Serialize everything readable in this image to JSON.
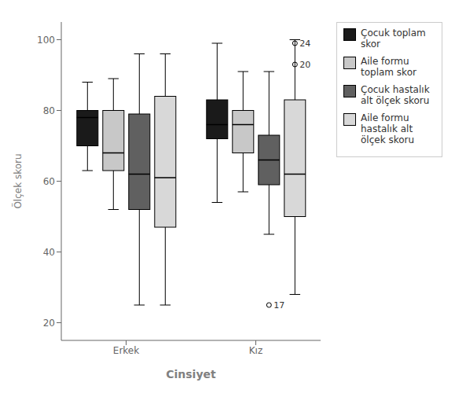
{
  "chart_data": {
    "type": "box",
    "xlabel": "Cinsiyet",
    "ylabel": "Ölçek skoru",
    "categories": [
      "Erkek",
      "Kız"
    ],
    "ylim": [
      15,
      105
    ],
    "yticks": [
      20,
      40,
      60,
      80,
      100
    ],
    "grid": false,
    "legend": "right",
    "series": [
      {
        "name": "Çocuk toplam\nskor",
        "color": "#1a1a1a",
        "values": [
          {
            "q1": 70,
            "median": 78,
            "q3": 80,
            "whislo": 63,
            "whishi": 88
          },
          {
            "q1": 72,
            "median": 76,
            "q3": 83,
            "whislo": 54,
            "whishi": 99
          }
        ]
      },
      {
        "name": "Aile formu\ntoplam skor",
        "color": "#c8c8c8",
        "values": [
          {
            "q1": 63,
            "median": 68,
            "q3": 80,
            "whislo": 52,
            "whishi": 89
          },
          {
            "q1": 68,
            "median": 76,
            "q3": 80,
            "whislo": 57,
            "whishi": 91
          }
        ]
      },
      {
        "name": "Çocuk hastalık\nalt ölçek skoru",
        "color": "#606060",
        "values": [
          {
            "q1": 52,
            "median": 62,
            "q3": 79,
            "whislo": 25,
            "whishi": 96
          },
          {
            "q1": 59,
            "median": 66,
            "q3": 73,
            "whislo": 45,
            "whishi": 91
          }
        ]
      },
      {
        "name": "Aile formu\nhastalık alt\nölçek skoru",
        "color": "#d8d8d8",
        "values": [
          {
            "q1": 47,
            "median": 61,
            "q3": 84,
            "whislo": 25,
            "whishi": 96
          },
          {
            "q1": 50,
            "median": 62,
            "q3": 83,
            "whislo": 28,
            "whishi": 100
          }
        ]
      }
    ],
    "outliers": [
      {
        "category": "Kız",
        "series": "Çocuk hastalık\nalt ölçek skoru",
        "value": 25,
        "label": "17"
      },
      {
        "category": "Kız",
        "series": "Aile formu\nhastalık alt\nölçek skoru",
        "value": 99,
        "label": "24"
      },
      {
        "category": "Kız",
        "series": "Aile formu\nhastalık alt\nölçek skoru",
        "value": 93,
        "label": "20"
      }
    ]
  }
}
